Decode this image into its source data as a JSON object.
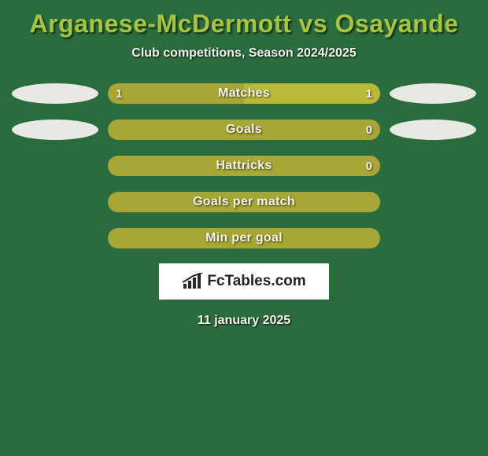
{
  "card_bg": "#2a6c3e",
  "title_color": "#a8c43e",
  "text_light": "#f5f5f0",
  "accent_a": "#a8a735",
  "accent_b": "#b9b838",
  "logo_bg": "#ffffff",
  "logo_text_color": "#222222",
  "logo_icon_color": "#2a2a2a",
  "ellipse_color": "#e9e9e4",
  "title": "Arganese-McDermott vs Osayande",
  "subtitle": "Club competitions, Season 2024/2025",
  "footer_date": "11 january 2025",
  "logo_text_1": "Fc",
  "logo_text_2": "Tables.com",
  "rows": [
    {
      "label": "Matches",
      "left_val": "1",
      "right_val": "1",
      "left_pct": 50,
      "right_pct": 50,
      "show_left_val": true,
      "show_right_val": true,
      "show_left_ellipse": true,
      "show_right_ellipse": true
    },
    {
      "label": "Goals",
      "left_val": "",
      "right_val": "0",
      "left_pct": 100,
      "right_pct": 0,
      "show_left_val": false,
      "show_right_val": true,
      "show_left_ellipse": true,
      "show_right_ellipse": true
    },
    {
      "label": "Hattricks",
      "left_val": "",
      "right_val": "0",
      "left_pct": 100,
      "right_pct": 0,
      "show_left_val": false,
      "show_right_val": true,
      "show_left_ellipse": false,
      "show_right_ellipse": false
    },
    {
      "label": "Goals per match",
      "left_val": "",
      "right_val": "",
      "left_pct": 100,
      "right_pct": 0,
      "show_left_val": false,
      "show_right_val": false,
      "show_left_ellipse": false,
      "show_right_ellipse": false
    },
    {
      "label": "Min per goal",
      "left_val": "",
      "right_val": "",
      "left_pct": 100,
      "right_pct": 0,
      "show_left_val": false,
      "show_right_val": false,
      "show_left_ellipse": false,
      "show_right_ellipse": false
    }
  ]
}
